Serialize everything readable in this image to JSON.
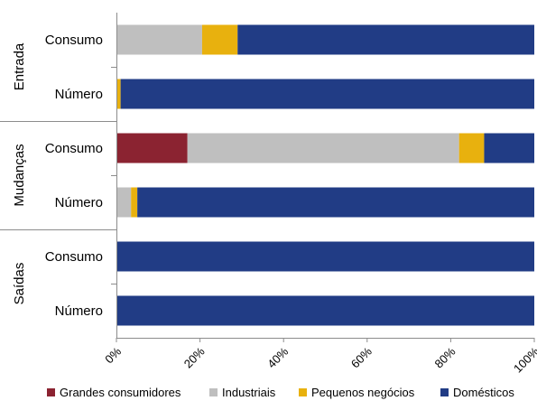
{
  "chart_data": {
    "type": "bar",
    "orientation": "horizontal",
    "stacking": "percent",
    "xlim": [
      0,
      100
    ],
    "x_ticks": [
      "0%",
      "20%",
      "40%",
      "60%",
      "80%",
      "100%"
    ],
    "grid": false,
    "legend_position": "bottom",
    "groups": [
      "Entrada",
      "Mudanças",
      "Saídas"
    ],
    "categories": [
      {
        "group": "Entrada",
        "label": "Consumo"
      },
      {
        "group": "Entrada",
        "label": "Número"
      },
      {
        "group": "Mudanças",
        "label": "Consumo"
      },
      {
        "group": "Mudanças",
        "label": "Número"
      },
      {
        "group": "Saídas",
        "label": "Consumo"
      },
      {
        "group": "Saídas",
        "label": "Número"
      }
    ],
    "series": [
      {
        "name": "Grandes consumidores",
        "color": "#8b2331",
        "values": [
          0,
          0,
          17,
          0,
          0,
          0
        ]
      },
      {
        "name": "Industriais",
        "color": "#bfbfbf",
        "values": [
          20.5,
          0,
          65,
          3.5,
          0,
          0
        ]
      },
      {
        "name": "Pequenos negócios",
        "color": "#e8b10e",
        "values": [
          8.5,
          1,
          6,
          1.5,
          0,
          0
        ]
      },
      {
        "name": "Domésticos",
        "color": "#213c85",
        "values": [
          71,
          99,
          12,
          95,
          100,
          100
        ]
      }
    ]
  }
}
